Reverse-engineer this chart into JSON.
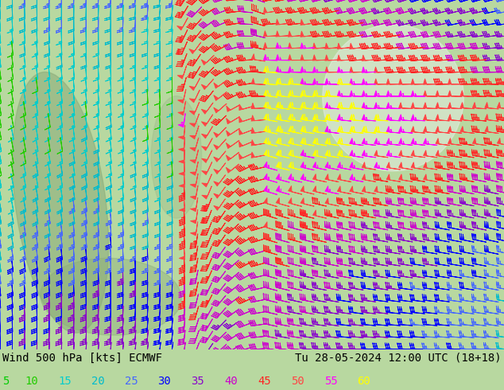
{
  "title_left": "Wind 500 hPa [kts] ECMWF",
  "title_right": "Tu 28-05-2024 12:00 UTC (18+18)",
  "legend_values": [
    "5",
    "10",
    "15",
    "20",
    "25",
    "30",
    "35",
    "40",
    "45",
    "50",
    "55",
    "60"
  ],
  "legend_colors": [
    "#00cc00",
    "#22cc00",
    "#00cccc",
    "#00bbcc",
    "#4466ff",
    "#0000ff",
    "#8800cc",
    "#cc00cc",
    "#ff2222",
    "#ff4444",
    "#ff00ff",
    "#ffff00"
  ],
  "bg_color": "#b8d8a0",
  "map_bg": "#b8d8a0",
  "fig_width": 6.34,
  "fig_height": 4.9,
  "dpi": 100,
  "bottom_bar_color": "#d8d8d8",
  "font_size_title": 10,
  "font_size_legend": 10
}
